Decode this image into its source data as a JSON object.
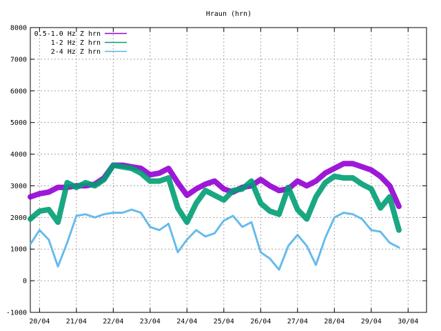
{
  "chart_data": {
    "type": "line",
    "title": "Hraun (hrn)",
    "xlabel": "",
    "ylabel": "",
    "ylim": [
      -1000,
      8000
    ],
    "yticks": [
      -1000,
      0,
      1000,
      2000,
      3000,
      4000,
      5000,
      6000,
      7000,
      8000
    ],
    "xlim": [
      "2025-04-19T18:00",
      "2025-04-30T12:00"
    ],
    "xticks": [
      {
        "label": "20/04",
        "date": "2025-04-20"
      },
      {
        "label": "21/04",
        "date": "2025-04-21"
      },
      {
        "label": "22/04",
        "date": "2025-04-22"
      },
      {
        "label": "23/04",
        "date": "2025-04-23"
      },
      {
        "label": "24/04",
        "date": "2025-04-24"
      },
      {
        "label": "25/04",
        "date": "2025-04-25"
      },
      {
        "label": "26/04",
        "date": "2025-04-26"
      },
      {
        "label": "27/04",
        "date": "2025-04-27"
      },
      {
        "label": "28/04",
        "date": "2025-04-28"
      },
      {
        "label": "29/04",
        "date": "2025-04-29"
      },
      {
        "label": "30/04",
        "date": "2025-04-30"
      }
    ],
    "grid": true,
    "legend_position": "top-left",
    "series": [
      {
        "name": "0.5-1.0 Hz Z hrn",
        "color": "#9400d3",
        "x": [
          "2025-04-19T18:00",
          "2025-04-20T00:00",
          "2025-04-20T06:00",
          "2025-04-20T12:00",
          "2025-04-20T18:00",
          "2025-04-21T00:00",
          "2025-04-21T06:00",
          "2025-04-21T12:00",
          "2025-04-21T18:00",
          "2025-04-22T00:00",
          "2025-04-22T06:00",
          "2025-04-22T12:00",
          "2025-04-22T18:00",
          "2025-04-23T00:00",
          "2025-04-23T06:00",
          "2025-04-23T12:00",
          "2025-04-23T18:00",
          "2025-04-24T00:00",
          "2025-04-24T06:00",
          "2025-04-24T12:00",
          "2025-04-24T18:00",
          "2025-04-25T00:00",
          "2025-04-25T06:00",
          "2025-04-25T12:00",
          "2025-04-25T18:00",
          "2025-04-26T00:00",
          "2025-04-26T06:00",
          "2025-04-26T12:00",
          "2025-04-26T18:00",
          "2025-04-27T00:00",
          "2025-04-27T06:00",
          "2025-04-27T12:00",
          "2025-04-27T18:00",
          "2025-04-28T00:00",
          "2025-04-28T06:00",
          "2025-04-28T12:00",
          "2025-04-28T18:00",
          "2025-04-29T00:00",
          "2025-04-29T06:00",
          "2025-04-29T12:00",
          "2025-04-29T18:00"
        ],
        "y": [
          2650,
          2750,
          2800,
          2950,
          2950,
          3000,
          3000,
          3050,
          3250,
          3650,
          3650,
          3600,
          3550,
          3350,
          3400,
          3550,
          3100,
          2700,
          2900,
          3050,
          3150,
          2900,
          2800,
          2950,
          3000,
          3200,
          3000,
          2850,
          2900,
          3150,
          3000,
          3150,
          3400,
          3550,
          3700,
          3700,
          3600,
          3500,
          3300,
          3000,
          2350
        ]
      },
      {
        "name": "1-2 Hz Z hrn",
        "color": "#009e73",
        "x": [
          "2025-04-19T18:00",
          "2025-04-20T00:00",
          "2025-04-20T06:00",
          "2025-04-20T12:00",
          "2025-04-20T18:00",
          "2025-04-21T00:00",
          "2025-04-21T06:00",
          "2025-04-21T12:00",
          "2025-04-21T18:00",
          "2025-04-22T00:00",
          "2025-04-22T06:00",
          "2025-04-22T12:00",
          "2025-04-22T18:00",
          "2025-04-23T00:00",
          "2025-04-23T06:00",
          "2025-04-23T12:00",
          "2025-04-23T18:00",
          "2025-04-24T00:00",
          "2025-04-24T06:00",
          "2025-04-24T12:00",
          "2025-04-24T18:00",
          "2025-04-25T00:00",
          "2025-04-25T06:00",
          "2025-04-25T12:00",
          "2025-04-25T18:00",
          "2025-04-26T00:00",
          "2025-04-26T06:00",
          "2025-04-26T12:00",
          "2025-04-26T18:00",
          "2025-04-27T00:00",
          "2025-04-27T06:00",
          "2025-04-27T12:00",
          "2025-04-27T18:00",
          "2025-04-28T00:00",
          "2025-04-28T06:00",
          "2025-04-28T12:00",
          "2025-04-28T18:00",
          "2025-04-29T00:00",
          "2025-04-29T06:00",
          "2025-04-29T12:00",
          "2025-04-29T18:00"
        ],
        "y": [
          1950,
          2200,
          2250,
          1850,
          3100,
          2950,
          3100,
          3000,
          3200,
          3650,
          3600,
          3550,
          3400,
          3150,
          3150,
          3250,
          2300,
          1850,
          2450,
          2850,
          2700,
          2550,
          2850,
          2900,
          3150,
          2450,
          2200,
          2100,
          2950,
          2250,
          1950,
          2650,
          3100,
          3300,
          3250,
          3250,
          3050,
          2900,
          2300,
          2650,
          1600
        ]
      },
      {
        "name": "2-4 Hz Z hrn",
        "color": "#56b4e9",
        "x": [
          "2025-04-19T18:00",
          "2025-04-20T00:00",
          "2025-04-20T06:00",
          "2025-04-20T12:00",
          "2025-04-20T18:00",
          "2025-04-21T00:00",
          "2025-04-21T06:00",
          "2025-04-21T12:00",
          "2025-04-21T18:00",
          "2025-04-22T00:00",
          "2025-04-22T06:00",
          "2025-04-22T12:00",
          "2025-04-22T18:00",
          "2025-04-23T00:00",
          "2025-04-23T06:00",
          "2025-04-23T12:00",
          "2025-04-23T18:00",
          "2025-04-24T00:00",
          "2025-04-24T06:00",
          "2025-04-24T12:00",
          "2025-04-24T18:00",
          "2025-04-25T00:00",
          "2025-04-25T06:00",
          "2025-04-25T12:00",
          "2025-04-25T18:00",
          "2025-04-26T00:00",
          "2025-04-26T06:00",
          "2025-04-26T12:00",
          "2025-04-26T18:00",
          "2025-04-27T00:00",
          "2025-04-27T06:00",
          "2025-04-27T12:00",
          "2025-04-27T18:00",
          "2025-04-28T00:00",
          "2025-04-28T06:00",
          "2025-04-28T12:00",
          "2025-04-28T18:00",
          "2025-04-29T00:00",
          "2025-04-29T06:00",
          "2025-04-29T12:00",
          "2025-04-29T18:00"
        ],
        "y": [
          1150,
          1600,
          1300,
          450,
          1200,
          2050,
          2100,
          2000,
          2100,
          2150,
          2150,
          2250,
          2150,
          1700,
          1600,
          1800,
          900,
          1300,
          1600,
          1400,
          1500,
          1900,
          2050,
          1700,
          1850,
          900,
          700,
          350,
          1100,
          1450,
          1100,
          500,
          1350,
          2000,
          2150,
          2100,
          1950,
          1600,
          1550,
          1200,
          1050
        ]
      }
    ]
  }
}
